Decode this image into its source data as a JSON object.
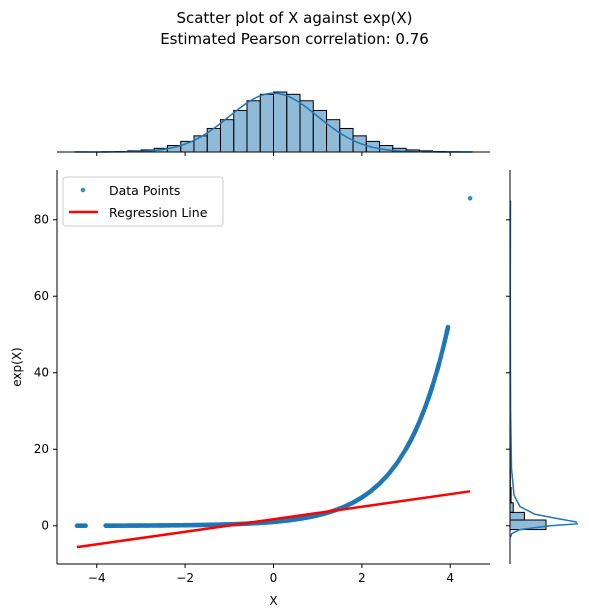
{
  "title": {
    "line1": "Scatter plot of X against exp(X)",
    "line2": "Estimated Pearson correlation: 0.76"
  },
  "chart_data": {
    "type": "scatter",
    "title": "Scatter plot of X against exp(X)",
    "subtitle": "Estimated Pearson correlation: 0.76",
    "xlabel": "X",
    "ylabel": "exp(X)",
    "xlim": [
      -4.9,
      4.9
    ],
    "ylim": [
      -10,
      93
    ],
    "x_ticks": [
      -4,
      -2,
      0,
      2,
      4
    ],
    "y_ticks": [
      0,
      20,
      40,
      60,
      80
    ],
    "grid": false,
    "legend_position": "top-left",
    "series": [
      {
        "name": "Data Points",
        "kind": "scatter",
        "color": "#1f77b4",
        "points": [
          [
            -4.45,
            0.01
          ],
          [
            -4.25,
            0.01
          ],
          [
            -3.8,
            0.02
          ],
          [
            -3.7,
            0.02
          ],
          [
            -3.55,
            0.03
          ],
          [
            -3.4,
            0.03
          ],
          [
            -3.2,
            0.04
          ],
          [
            -3.0,
            0.05
          ],
          [
            -2.8,
            0.06
          ],
          [
            -2.6,
            0.07
          ],
          [
            -2.4,
            0.09
          ],
          [
            -2.2,
            0.11
          ],
          [
            -2.0,
            0.14
          ],
          [
            -1.8,
            0.17
          ],
          [
            -1.6,
            0.2
          ],
          [
            -1.4,
            0.25
          ],
          [
            -1.2,
            0.3
          ],
          [
            -1.0,
            0.37
          ],
          [
            -0.8,
            0.45
          ],
          [
            -0.6,
            0.55
          ],
          [
            -0.4,
            0.67
          ],
          [
            -0.2,
            0.82
          ],
          [
            0.0,
            1.0
          ],
          [
            0.2,
            1.22
          ],
          [
            0.4,
            1.49
          ],
          [
            0.6,
            1.82
          ],
          [
            0.8,
            2.23
          ],
          [
            1.0,
            2.72
          ],
          [
            1.2,
            3.32
          ],
          [
            1.4,
            4.06
          ],
          [
            1.6,
            4.95
          ],
          [
            1.8,
            6.05
          ],
          [
            2.0,
            7.39
          ],
          [
            2.2,
            9.03
          ],
          [
            2.4,
            11.02
          ],
          [
            2.6,
            13.46
          ],
          [
            2.8,
            16.44
          ],
          [
            3.0,
            20.09
          ],
          [
            3.1,
            22.2
          ],
          [
            3.2,
            24.53
          ],
          [
            3.3,
            27.11
          ],
          [
            3.4,
            29.96
          ],
          [
            3.5,
            33.12
          ],
          [
            3.55,
            34.81
          ],
          [
            3.6,
            36.6
          ],
          [
            3.7,
            40.45
          ],
          [
            3.75,
            42.52
          ],
          [
            3.85,
            46.99
          ],
          [
            3.92,
            50.4
          ],
          [
            3.95,
            51.94
          ],
          [
            4.45,
            85.6
          ]
        ]
      },
      {
        "name": "Regression Line",
        "kind": "line",
        "color": "#ff0000",
        "points": [
          [
            -4.45,
            -5.6
          ],
          [
            4.45,
            9.0
          ]
        ]
      }
    ],
    "marginal_x": {
      "type": "histogram",
      "bin_edges": [
        -4.5,
        -4.2,
        -3.9,
        -3.6,
        -3.3,
        -3.0,
        -2.7,
        -2.4,
        -2.1,
        -1.8,
        -1.5,
        -1.2,
        -0.9,
        -0.6,
        -0.3,
        0.0,
        0.3,
        0.6,
        0.9,
        1.2,
        1.5,
        1.8,
        2.1,
        2.4,
        2.7,
        3.0,
        3.3,
        3.6,
        3.9,
        4.2,
        4.5
      ],
      "counts": [
        0.5,
        0,
        1,
        2,
        5,
        9,
        16,
        28,
        46,
        70,
        102,
        140,
        180,
        222,
        250,
        260,
        250,
        222,
        180,
        140,
        102,
        70,
        46,
        28,
        16,
        9,
        5,
        2,
        1,
        0.5
      ],
      "fill": "#1f77b4",
      "kde": true
    },
    "marginal_y": {
      "type": "histogram",
      "bins": [
        {
          "from": -1,
          "to": 1.5,
          "count": 100
        },
        {
          "from": 1.5,
          "to": 3.5,
          "count": 40
        },
        {
          "from": 3.5,
          "to": 6,
          "count": 9
        },
        {
          "from": 6,
          "to": 10,
          "count": 3
        },
        {
          "from": 10,
          "to": 20,
          "count": 1
        },
        {
          "from": 20,
          "to": 60,
          "count": 0.3
        }
      ],
      "fill": "#1f77b4",
      "kde": true
    }
  }
}
